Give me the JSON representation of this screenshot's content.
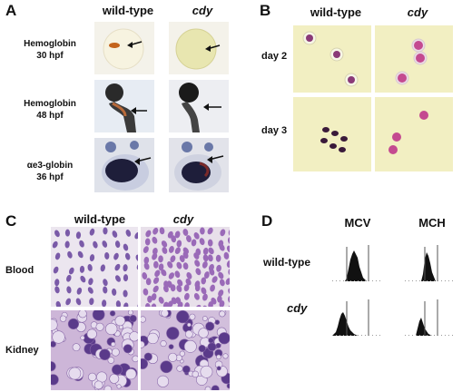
{
  "panels": {
    "A": {
      "letter": "A",
      "columns": [
        "wild-type",
        "cdy"
      ],
      "rows": [
        {
          "line1": "Hemoglobin",
          "line2": "30 hpf"
        },
        {
          "line1": "Hemoglobin",
          "line2": "48 hpf"
        },
        {
          "line1": "αe3-globin",
          "line2": "36 hpf"
        }
      ]
    },
    "B": {
      "letter": "B",
      "columns": [
        "wild-type",
        "cdy"
      ],
      "rows": [
        "day 2",
        "day 3"
      ]
    },
    "C": {
      "letter": "C",
      "columns": [
        "wild-type",
        "cdy"
      ],
      "rows": [
        "Blood",
        "Kidney"
      ]
    },
    "D": {
      "letter": "D",
      "columns": [
        "MCV",
        "MCH"
      ],
      "rows": [
        "wild-type",
        "cdy"
      ]
    }
  },
  "colors": {
    "smear_bg": "#f2efc2",
    "rbc_wt": "#8a3a78",
    "rbc_cdy": "#c44a90",
    "blood_bg": "#ece6ef",
    "kidney_bg": "#cdb6d8",
    "stain": "#6c4a9c"
  }
}
